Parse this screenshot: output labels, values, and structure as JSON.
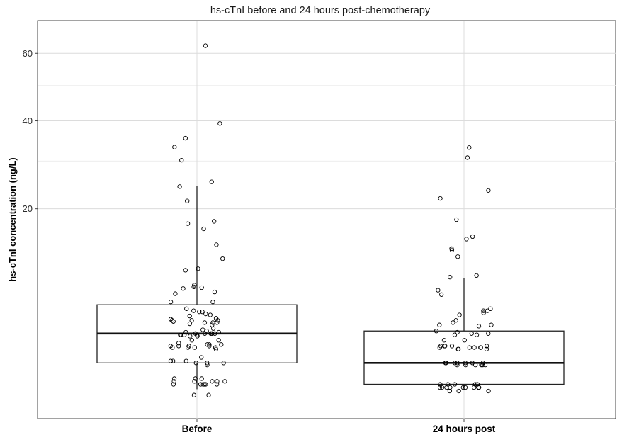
{
  "chart_data": {
    "type": "box",
    "title": "hs-cTnI before and 24 hours post-chemotherapy",
    "xlabel": "",
    "ylabel": "hs-cTnI concentration (ng/L)",
    "y_scale": "sqrt",
    "ylim": [
      0,
      68
    ],
    "y_ticks": [
      20,
      40,
      60
    ],
    "y_tick_labels": [
      "20",
      "40",
      "60"
    ],
    "y_minor_gridlines": [
      5,
      10,
      30,
      50
    ],
    "grid": true,
    "categories": [
      "Before",
      "24 hours post"
    ],
    "boxes": [
      {
        "category": "Before",
        "q1": 1.5,
        "median": 3.4,
        "q3": 6.0,
        "whisker_low": 0.45,
        "whisker_high": 24.5,
        "points": [
          62.5,
          39.3,
          35.5,
          33.3,
          30.2,
          25.4,
          24.4,
          21.5,
          17.7,
          17.3,
          16.4,
          13.8,
          11.7,
          10.3,
          10.1,
          8.2,
          8.0,
          7.9,
          7.8,
          7.4,
          7.2,
          6.3,
          6.3,
          5.6,
          5.4,
          5.3,
          5.3,
          5.1,
          5.0,
          4.9,
          4.7,
          4.6,
          4.5,
          4.5,
          4.5,
          4.4,
          4.3,
          4.3,
          4.3,
          4.2,
          4.1,
          3.8,
          3.7,
          3.6,
          3.5,
          3.5,
          3.4,
          3.4,
          3.4,
          3.4,
          3.4,
          3.3,
          3.3,
          3.3,
          3.3,
          3.2,
          3.2,
          2.9,
          2.9,
          2.7,
          2.6,
          2.6,
          2.6,
          2.5,
          2.5,
          2.5,
          2.5,
          2.4,
          2.4,
          2.4,
          2.4,
          2.3,
          1.8,
          1.6,
          1.6,
          1.6,
          1.5,
          1.5,
          1.5,
          1.4,
          0.8,
          0.8,
          0.8,
          0.7,
          0.7,
          0.7,
          0.7,
          0.7,
          0.6,
          0.6,
          0.6,
          0.6,
          0.6,
          0.6,
          0.3,
          0.3
        ]
      },
      {
        "category": "24 hours post",
        "q1": 0.6,
        "median": 1.5,
        "q3": 3.6,
        "whisker_low": 0.5,
        "whisker_high": 9.1,
        "points": [
          33.2,
          30.8,
          23.6,
          22.0,
          18.0,
          15.1,
          14.7,
          13.2,
          13.0,
          12.0,
          9.4,
          9.2,
          7.6,
          7.1,
          5.6,
          5.4,
          5.4,
          5.2,
          5.0,
          4.5,
          4.3,
          4.1,
          4.1,
          4.0,
          3.6,
          3.5,
          3.4,
          3.4,
          3.3,
          3.3,
          2.9,
          2.9,
          2.5,
          2.5,
          2.5,
          2.5,
          2.5,
          2.4,
          2.4,
          2.4,
          2.4,
          2.4,
          2.3,
          2.3,
          2.3,
          1.5,
          1.5,
          1.5,
          1.5,
          1.5,
          1.5,
          1.5,
          1.4,
          1.4,
          1.4,
          1.4,
          1.4,
          1.4,
          0.6,
          0.6,
          0.6,
          0.6,
          0.6,
          0.5,
          0.5,
          0.5,
          0.5,
          0.5,
          0.5,
          0.5,
          0.5,
          0.5,
          0.4,
          0.4,
          0.4
        ]
      }
    ]
  }
}
